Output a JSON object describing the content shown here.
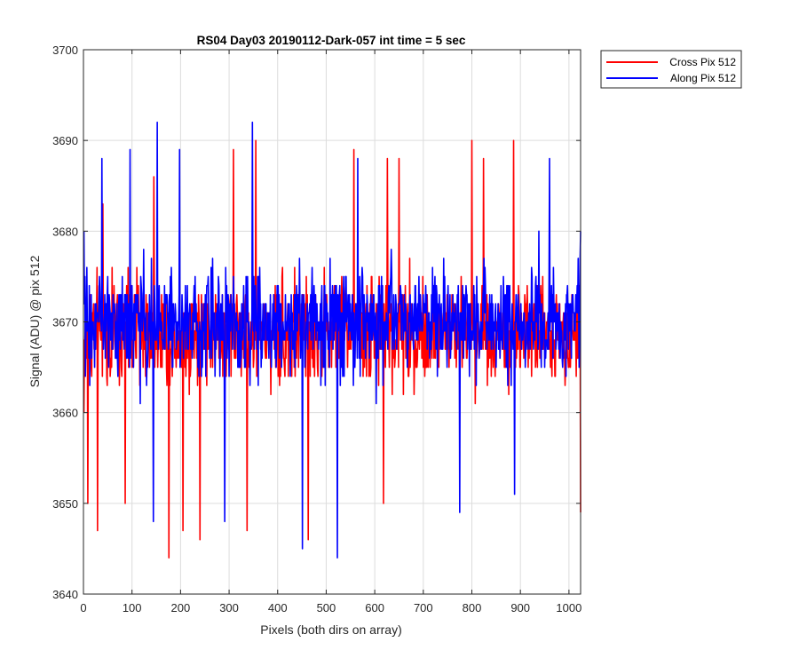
{
  "chart_data": {
    "type": "line",
    "title": "RS04 Day03 20190112-Dark-057 int time = 5 sec",
    "xlabel": "Pixels (both dirs on array)",
    "ylabel": "Signal (ADU) @ pix 512",
    "xlim": [
      0,
      1024
    ],
    "ylim": [
      3640,
      3700
    ],
    "xticks": [
      0,
      100,
      200,
      300,
      400,
      500,
      600,
      700,
      800,
      900,
      1000
    ],
    "yticks": [
      3640,
      3650,
      3660,
      3670,
      3680,
      3690,
      3700
    ],
    "grid": true,
    "legend_position": "outside-top-right",
    "x": {
      "start": 1,
      "end": 1024,
      "step": 1
    },
    "series": [
      {
        "name": "Cross Pix 512",
        "color": "#ff0000",
        "summary": {
          "mean": 3669,
          "min": 3644,
          "max": 3690
        },
        "samples": [
          [
            1,
            3660
          ],
          [
            9,
            3650
          ],
          [
            29,
            3647
          ],
          [
            40,
            3683
          ],
          [
            86,
            3650
          ],
          [
            145,
            3686
          ],
          [
            176,
            3644
          ],
          [
            205,
            3647
          ],
          [
            240,
            3646
          ],
          [
            309,
            3689
          ],
          [
            337,
            3647
          ],
          [
            355,
            3690
          ],
          [
            463,
            3646
          ],
          [
            557,
            3689
          ],
          [
            618,
            3650
          ],
          [
            626,
            3688
          ],
          [
            650,
            3688
          ],
          [
            800,
            3690
          ],
          [
            824,
            3688
          ],
          [
            886,
            3690
          ],
          [
            1024,
            3649
          ]
        ]
      },
      {
        "name": "Along Pix 512",
        "color": "#0000ff",
        "summary": {
          "mean": 3670,
          "min": 3644,
          "max": 3692
        },
        "samples": [
          [
            1,
            3680
          ],
          [
            38,
            3688
          ],
          [
            96,
            3689
          ],
          [
            144,
            3648
          ],
          [
            152,
            3692
          ],
          [
            198,
            3689
          ],
          [
            291,
            3648
          ],
          [
            348,
            3692
          ],
          [
            451,
            3645
          ],
          [
            523,
            3644
          ],
          [
            565,
            3688
          ],
          [
            775,
            3649
          ],
          [
            888,
            3651
          ],
          [
            960,
            3688
          ],
          [
            1024,
            3680
          ]
        ]
      }
    ]
  }
}
